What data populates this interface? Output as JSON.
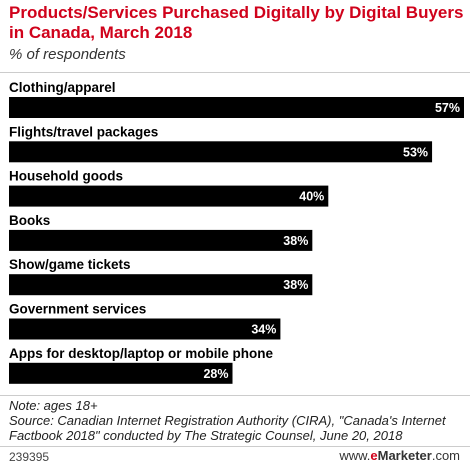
{
  "header": {
    "title": "Products/Services Purchased Digitally by Digital Buyers in Canada, March 2018",
    "subtitle": "% of respondents"
  },
  "footer": {
    "note": "Note: ages 18+",
    "source": "Source: Canadian Internet Registration Authority (CIRA), \"Canada's Internet Factbook 2018\" conducted by The Strategic Counsel, June 20, 2018",
    "chart_id": "239395",
    "brand_prefix": "www.",
    "brand_e": "e",
    "brand_rest": "Marketer",
    "brand_suffix": ".com"
  },
  "colors": {
    "title": "#d0021b",
    "bar": "#000000",
    "value_label": "#ffffff",
    "brand_accent": "#d0021b"
  },
  "chart_data": {
    "type": "bar",
    "orientation": "horizontal",
    "title": "Products/Services Purchased Digitally by Digital Buyers in Canada, March 2018",
    "subtitle": "% of respondents",
    "categories": [
      "Clothing/apparel",
      "Flights/travel packages",
      "Household goods",
      "Books",
      "Show/game tickets",
      "Government services",
      "Apps for desktop/laptop or mobile phone"
    ],
    "values": [
      57,
      53,
      40,
      38,
      38,
      34,
      28
    ],
    "value_labels": [
      "57%",
      "53%",
      "40%",
      "38%",
      "38%",
      "34%",
      "28%"
    ],
    "xlim": [
      0,
      57
    ],
    "grid": false,
    "legend": "none"
  }
}
